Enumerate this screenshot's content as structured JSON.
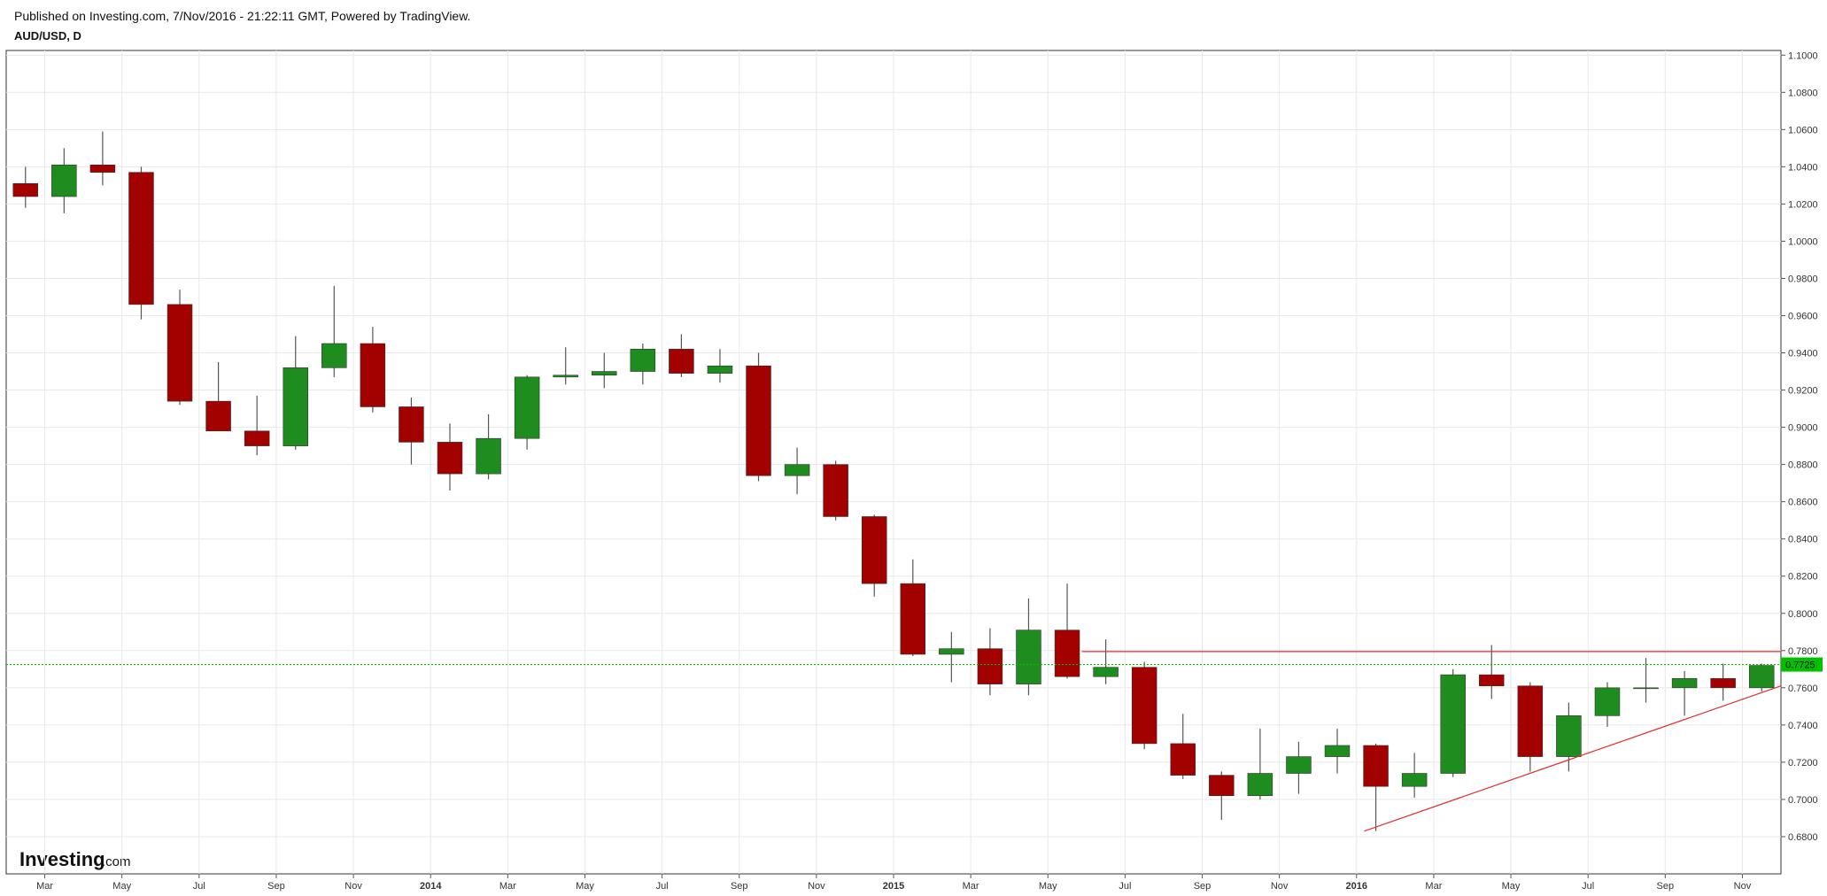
{
  "header": {
    "published": "Published on Investing.com, 7/Nov/2016 - 21:22:11 GMT, Powered by TradingView.",
    "symbol": "AUD/USD, D"
  },
  "logo": {
    "brand": "Investing",
    "suffix": ".com"
  },
  "chart_data": {
    "type": "candlestick",
    "categories": [
      null,
      "Mar",
      null,
      "May",
      null,
      "Jul",
      null,
      "Sep",
      null,
      "Nov",
      null,
      "2014",
      null,
      "Mar",
      null,
      "May",
      null,
      "Jul",
      null,
      "Sep",
      null,
      "Nov",
      null,
      "2015",
      null,
      "Mar",
      null,
      "May",
      null,
      "Jul",
      null,
      "Sep",
      null,
      "Nov",
      null,
      "2016",
      null,
      "Mar",
      null,
      "May",
      null,
      "Jul",
      null,
      "Sep",
      null,
      "Nov"
    ],
    "open": [
      1.031,
      1.024,
      1.041,
      1.037,
      0.966,
      0.914,
      0.898,
      0.89,
      0.932,
      0.945,
      0.911,
      0.892,
      0.875,
      0.894,
      0.927,
      0.928,
      0.93,
      0.942,
      0.929,
      0.933,
      0.874,
      0.88,
      0.852,
      0.816,
      0.778,
      0.781,
      0.762,
      0.791,
      0.766,
      0.771,
      0.73,
      0.713,
      0.702,
      0.714,
      0.723,
      0.729,
      0.707,
      0.714,
      0.767,
      0.761,
      0.723,
      0.745,
      0.76,
      0.76,
      0.765,
      0.76
    ],
    "high": [
      1.04,
      1.05,
      1.059,
      1.04,
      0.974,
      0.935,
      0.917,
      0.949,
      0.976,
      0.954,
      0.916,
      0.902,
      0.907,
      0.928,
      0.943,
      0.94,
      0.945,
      0.95,
      0.942,
      0.94,
      0.889,
      0.882,
      0.853,
      0.829,
      0.79,
      0.792,
      0.808,
      0.816,
      0.786,
      0.774,
      0.746,
      0.715,
      0.738,
      0.731,
      0.738,
      0.73,
      0.725,
      0.77,
      0.783,
      0.763,
      0.752,
      0.763,
      0.776,
      0.769,
      0.773,
      0.773
    ],
    "low": [
      1.018,
      1.015,
      1.03,
      0.958,
      0.912,
      0.898,
      0.885,
      0.888,
      0.927,
      0.908,
      0.88,
      0.866,
      0.872,
      0.888,
      0.923,
      0.921,
      0.923,
      0.927,
      0.924,
      0.871,
      0.864,
      0.85,
      0.809,
      0.777,
      0.763,
      0.756,
      0.756,
      0.765,
      0.762,
      0.727,
      0.711,
      0.689,
      0.7,
      0.703,
      0.714,
      0.683,
      0.701,
      0.712,
      0.754,
      0.715,
      0.715,
      0.739,
      0.752,
      0.745,
      0.753,
      0.758
    ],
    "close": [
      1.024,
      1.041,
      1.037,
      0.966,
      0.914,
      0.898,
      0.89,
      0.932,
      0.945,
      0.911,
      0.892,
      0.875,
      0.894,
      0.927,
      0.928,
      0.93,
      0.942,
      0.929,
      0.933,
      0.874,
      0.88,
      0.852,
      0.816,
      0.778,
      0.781,
      0.762,
      0.791,
      0.766,
      0.771,
      0.73,
      0.713,
      0.702,
      0.714,
      0.723,
      0.729,
      0.707,
      0.714,
      0.767,
      0.761,
      0.723,
      0.745,
      0.76,
      0.76,
      0.765,
      0.76,
      0.772
    ],
    "up_color": "#1e8c1e",
    "down_color": "#a30000",
    "ylim": [
      0.66,
      1.1025
    ],
    "yticks": [
      {
        "value": 0.68,
        "label": "0.6800"
      },
      {
        "value": 0.7,
        "label": "0.7000"
      },
      {
        "value": 0.72,
        "label": "0.7200"
      },
      {
        "value": 0.74,
        "label": "0.7400"
      },
      {
        "value": 0.76,
        "label": "0.7600"
      },
      {
        "value": 0.78,
        "label": "0.7800"
      },
      {
        "value": 0.8,
        "label": "0.8000"
      },
      {
        "value": 0.82,
        "label": "0.8200"
      },
      {
        "value": 0.84,
        "label": "0.8400"
      },
      {
        "value": 0.86,
        "label": "0.8600"
      },
      {
        "value": 0.88,
        "label": "0.8800"
      },
      {
        "value": 0.9,
        "label": "0.9000"
      },
      {
        "value": 0.92,
        "label": "0.9200"
      },
      {
        "value": 0.94,
        "label": "0.9400"
      },
      {
        "value": 0.96,
        "label": "0.9600"
      },
      {
        "value": 0.98,
        "label": "0.9800"
      },
      {
        "value": 1.0,
        "label": "1.0000"
      },
      {
        "value": 1.02,
        "label": "1.0200"
      },
      {
        "value": 1.04,
        "label": "1.0400"
      },
      {
        "value": 1.06,
        "label": "1.0600"
      },
      {
        "value": 1.08,
        "label": "1.0800"
      },
      {
        "value": 1.1,
        "label": "1.1000"
      }
    ],
    "grid": true,
    "last_price": 0.7725,
    "last_price_color": "#00c000",
    "resistance": 0.7795,
    "trendline": [
      0.683,
      0.761
    ],
    "annotation_color": "#e03030"
  }
}
